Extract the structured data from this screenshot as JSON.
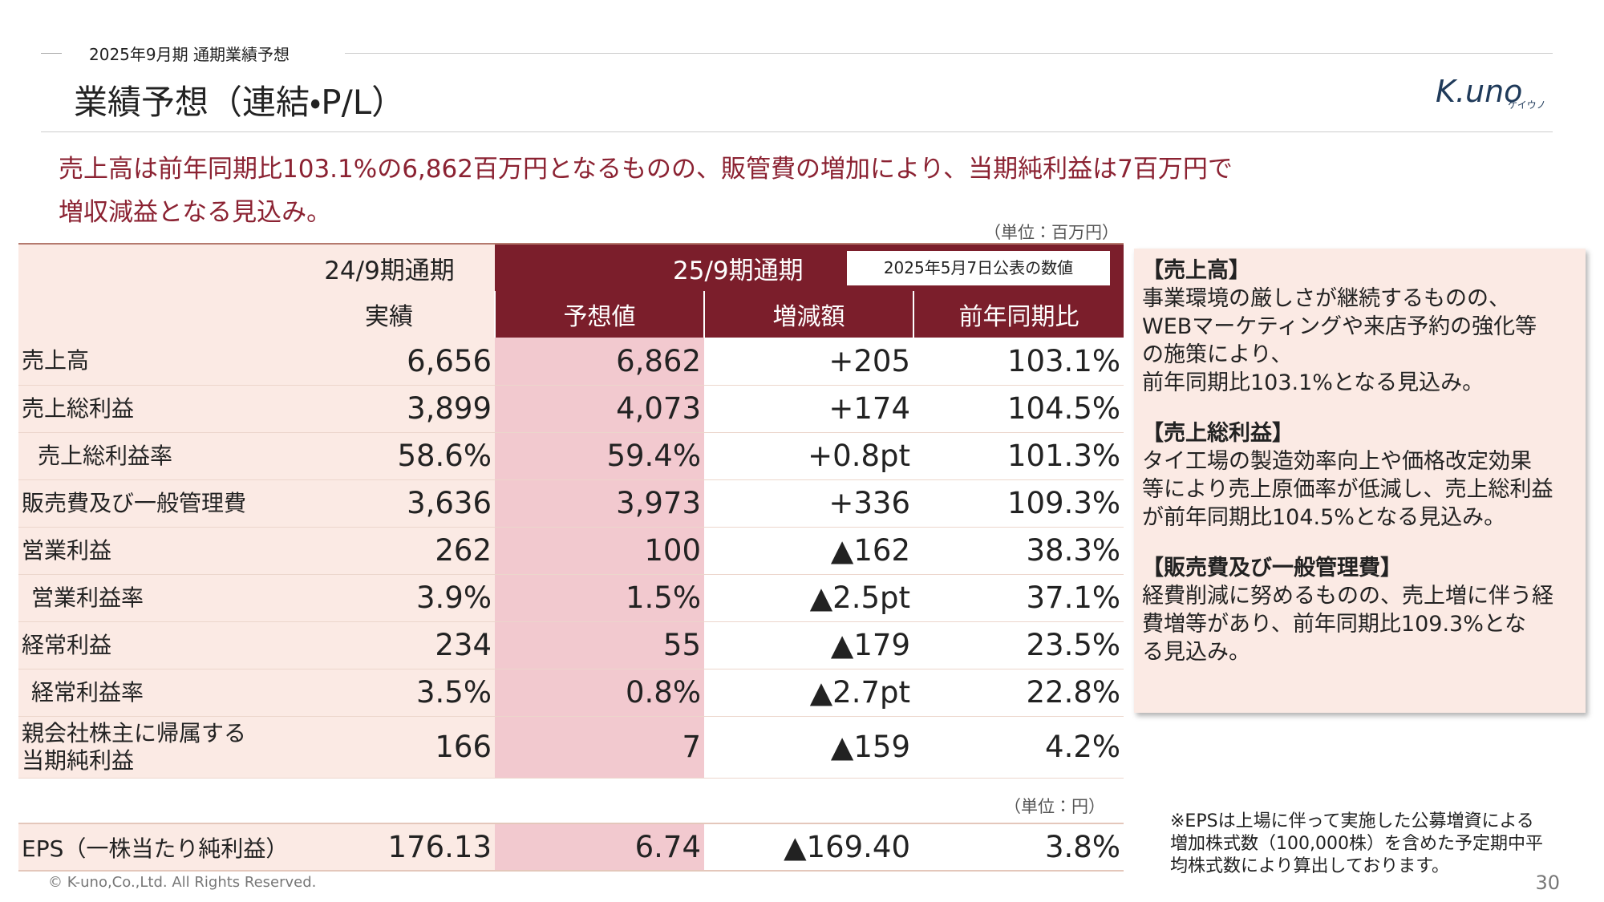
{
  "header": {
    "section": "2025年9月期 通期業績予想",
    "title": "業績予想（連結・P/L）",
    "logo": "K.uno",
    "logo_sub": "ケイウノ"
  },
  "lead": [
    "売上高は前年同期比103.1%の6,862百万円となるものの、販管費の増加により、当期純利益は7百万円で",
    "増収減益となる見込み。"
  ],
  "table": {
    "unit": "（単位：百万円）",
    "period_prev": "24/9期通期",
    "period_cur": "25/9期通期",
    "period_note": "2025年5月7日公表の数値",
    "columns": [
      "実績",
      "予想値",
      "増減額",
      "前年同期比"
    ],
    "rows": [
      [
        "売上高",
        "6,656",
        "6,862",
        "+205",
        "103.1%"
      ],
      [
        "売上総利益",
        "3,899",
        "4,073",
        "+174",
        "104.5%"
      ],
      [
        "売上総利益率",
        "58.6%",
        "59.4%",
        "+0.8pt",
        "101.3%"
      ],
      [
        "販売費及び一般管理費",
        "3,636",
        "3,973",
        "+336",
        "109.3%"
      ],
      [
        "営業利益",
        "262",
        "100",
        "▲162",
        "38.3%"
      ],
      [
        "営業利益率",
        "3.9%",
        "1.5%",
        "▲2.5pt",
        "37.1%"
      ],
      [
        "経常利益",
        "234",
        "55",
        "▲179",
        "23.5%"
      ],
      [
        "経常利益率",
        "3.5%",
        "0.8%",
        "▲2.7pt",
        "22.8%"
      ],
      [
        "親会社株主に帰属する\n当期純利益",
        "166",
        "7",
        "▲159",
        "4.2%"
      ]
    ]
  },
  "eps": {
    "unit": "（単位：円）",
    "row": [
      "EPS（一株当たり純利益）",
      "176.13",
      "6.74",
      "▲169.40",
      "3.8%"
    ]
  },
  "notes": [
    {
      "heading": "【売上高】",
      "lines": [
        "事業環境の厳しさが継続するものの、",
        "WEBマーケティングや来店予約の強化等",
        "の施策により、",
        "前年同期比103.1%となる見込み。"
      ]
    },
    {
      "heading": "【売上総利益】",
      "lines": [
        "タイ工場の製造効率向上や価格改定効果",
        "等により売上原価率が低減し、売上総利益",
        "が前年同期比104.5%となる見込み。"
      ]
    },
    {
      "heading": "【販売費及び一般管理費】",
      "lines": [
        "経費削減に努めるものの、売上増に伴う経",
        "費増等があり、前年同期比109.3%とな",
        "る見込み。"
      ]
    }
  ],
  "footnote": [
    "※EPSは上場に伴って実施した公募増資による",
    "増加株式数（100,000株）を含めた予定期中平",
    "均株式数により算出しております。"
  ],
  "footer": {
    "copyright": "© K-uno,Co.,Ltd. All Rights Reserved.",
    "page": "30"
  }
}
